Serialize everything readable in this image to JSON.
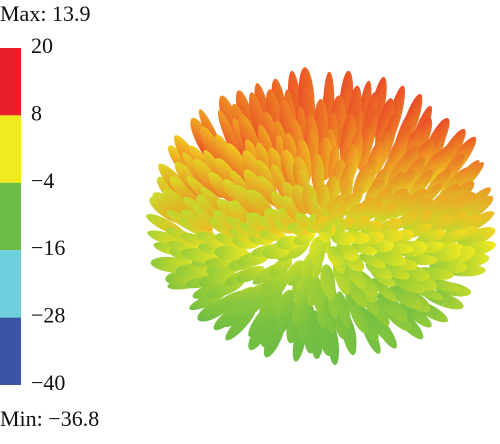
{
  "chart_data": {
    "type": "surface3d",
    "max_label": "Max: 13.9",
    "min_label": "Min: −36.8",
    "colorbar": {
      "ticks": [
        20,
        8,
        {
          "value": -4,
          "label": "−4"
        },
        {
          "value": -16,
          "label": "−16"
        },
        {
          "value": -28,
          "label": "−28"
        },
        {
          "value": -40,
          "label": "−40"
        }
      ],
      "colors": [
        "#e8202a",
        "#f2ea20",
        "#6cbd45",
        "#6dd0dc",
        "#3a55a5"
      ]
    }
  }
}
